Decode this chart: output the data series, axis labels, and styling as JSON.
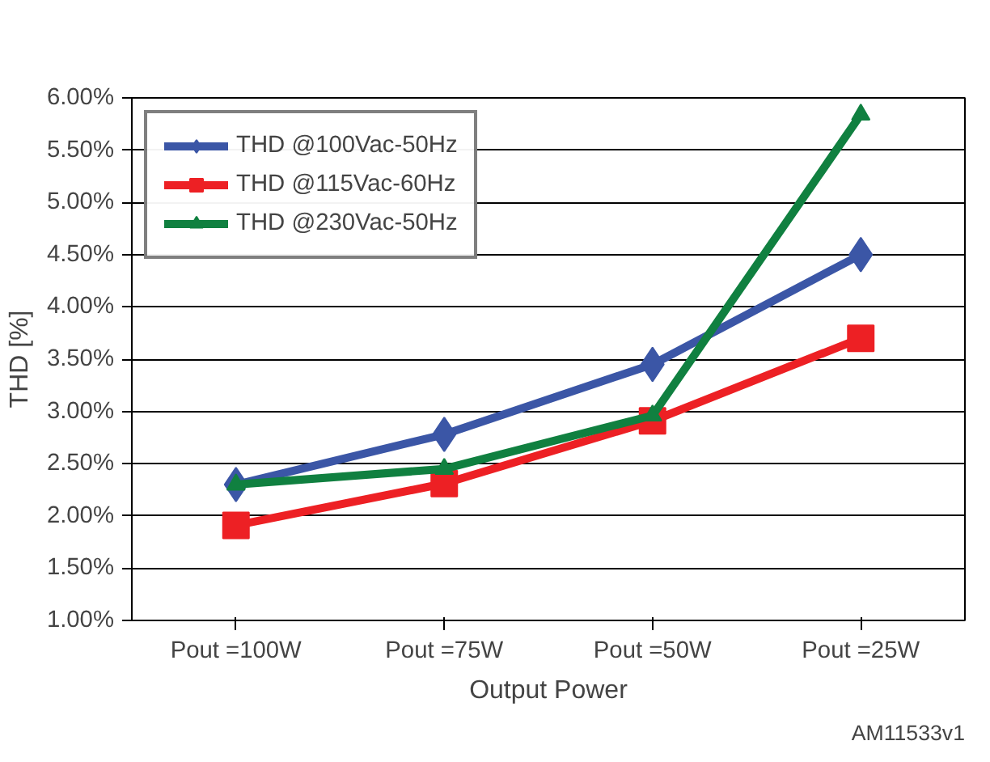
{
  "chart_data": {
    "type": "line",
    "xlabel": "Output Power",
    "ylabel": "THD [%]",
    "categories": [
      "Pout =100W",
      "Pout =75W",
      "Pout =50W",
      "Pout =25W"
    ],
    "series": [
      {
        "name": "THD @100Vac-50Hz",
        "color": "#3b56a6",
        "values": [
          2.3,
          2.78,
          3.45,
          4.5
        ],
        "marker": "diamond"
      },
      {
        "name": "THD @115Vac-60Hz",
        "color": "#ed2024",
        "values": [
          1.91,
          2.31,
          2.91,
          3.7
        ],
        "marker": "square"
      },
      {
        "name": "THD @230Vac-50Hz",
        "color": "#108040",
        "values": [
          2.3,
          2.45,
          2.96,
          5.84
        ],
        "marker": "triangle"
      }
    ],
    "ylim": [
      1.0,
      6.0
    ],
    "yticks": [
      {
        "value": 1.0,
        "label": "1.00%"
      },
      {
        "value": 1.5,
        "label": "1.50%"
      },
      {
        "value": 2.0,
        "label": "2.00%"
      },
      {
        "value": 2.5,
        "label": "2.50%"
      },
      {
        "value": 3.0,
        "label": "3.00%"
      },
      {
        "value": 3.5,
        "label": "3.50%"
      },
      {
        "value": 4.0,
        "label": "4.00%"
      },
      {
        "value": 4.5,
        "label": "4.50%"
      },
      {
        "value": 5.0,
        "label": "5.00%"
      },
      {
        "value": 5.5,
        "label": "5.50%"
      },
      {
        "value": 6.0,
        "label": "6.00%"
      }
    ],
    "grid": "y",
    "legend": "top left",
    "line_style": "solid",
    "annotations": [
      "AM11533v1"
    ]
  }
}
